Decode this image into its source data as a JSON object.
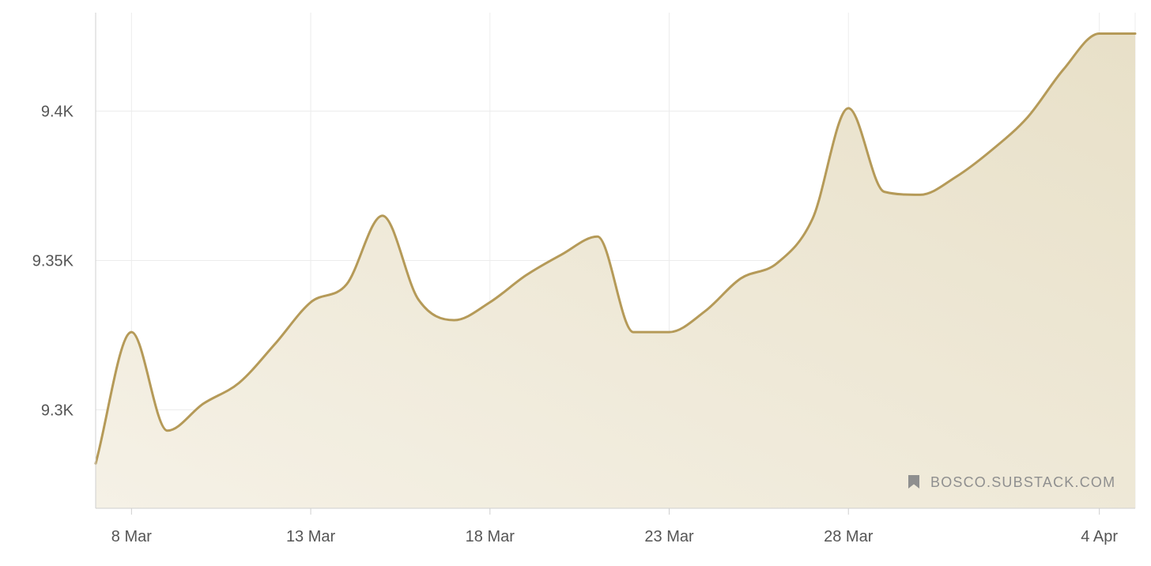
{
  "watermark": {
    "text": "BOSCO.SUBSTACK.COM",
    "icon": "bookmark-icon"
  },
  "colors": {
    "line": "#b59a58",
    "fill_top": "#e8e0c8",
    "fill_bottom": "#f5f1e6",
    "grid": "#ececec",
    "axis": "#cfcfcf"
  },
  "chart_data": {
    "type": "area",
    "title": "",
    "xlabel": "",
    "ylabel": "",
    "xlim": [
      "2025-03-07",
      "2025-04-05"
    ],
    "ylim": [
      9267,
      9433
    ],
    "grid": true,
    "x_ticks": [
      {
        "date": "2025-03-08",
        "label": "8 Mar"
      },
      {
        "date": "2025-03-13",
        "label": "13 Mar"
      },
      {
        "date": "2025-03-18",
        "label": "18 Mar"
      },
      {
        "date": "2025-03-23",
        "label": "23 Mar"
      },
      {
        "date": "2025-03-28",
        "label": "28 Mar"
      },
      {
        "date": "2025-04-04",
        "label": "4 Apr"
      }
    ],
    "y_ticks": [
      {
        "value": 9300,
        "label": "9.3K"
      },
      {
        "value": 9350,
        "label": "9.35K"
      },
      {
        "value": 9400,
        "label": "9.4K"
      }
    ],
    "series": [
      {
        "name": "",
        "x": [
          "2025-03-07",
          "2025-03-08",
          "2025-03-09",
          "2025-03-10",
          "2025-03-11",
          "2025-03-12",
          "2025-03-13",
          "2025-03-14",
          "2025-03-15",
          "2025-03-16",
          "2025-03-17",
          "2025-03-18",
          "2025-03-19",
          "2025-03-20",
          "2025-03-21",
          "2025-03-22",
          "2025-03-23",
          "2025-03-24",
          "2025-03-25",
          "2025-03-26",
          "2025-03-27",
          "2025-03-28",
          "2025-03-29",
          "2025-03-30",
          "2025-03-31",
          "2025-04-01",
          "2025-04-02",
          "2025-04-03",
          "2025-04-04",
          "2025-04-05"
        ],
        "y": [
          9282,
          9326,
          9293,
          9302,
          9309,
          9322,
          9336,
          9342,
          9365,
          9337,
          9330,
          9336,
          9345,
          9352,
          9358,
          9326,
          9326,
          9333,
          9344,
          9349,
          9364,
          9401,
          9373,
          9372,
          9378,
          9387,
          9398,
          9414,
          9426,
          9426
        ]
      }
    ]
  }
}
